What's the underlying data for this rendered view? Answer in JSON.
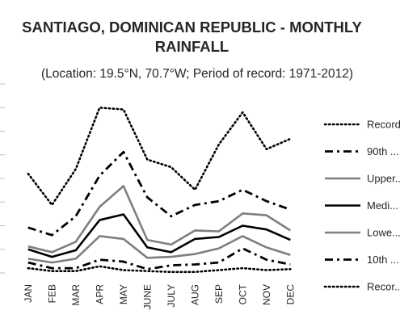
{
  "chart_data": {
    "type": "line",
    "title_line1": "SANTIAGO, DOMINICAN REPUBLIC - MONTHLY",
    "title_line2": "RAINFALL",
    "subtitle": "(Location: 19.5°N, 70.7°W; Period of record: 1971-2012)",
    "categories": [
      "JAN",
      "FEB",
      "MAR",
      "APR",
      "MAY",
      "JUNE",
      "JULY",
      "AUG",
      "SEP",
      "OCT",
      "NOV",
      "DEC"
    ],
    "ylim": [
      0,
      200
    ],
    "series": [
      {
        "name": "Record...",
        "style": "dotted",
        "color": "#000000",
        "values": [
          105,
          72,
          110,
          175,
          173,
          120,
          112,
          88,
          136,
          170,
          131,
          142
        ]
      },
      {
        "name": "90th ...",
        "style": "dashdot",
        "color": "#000000",
        "values": [
          48,
          40,
          60,
          103,
          128,
          80,
          60,
          72,
          76,
          88,
          76,
          67
        ]
      },
      {
        "name": "Upper...",
        "style": "solid",
        "color": "#7f7f7f",
        "values": [
          28,
          22,
          33,
          70,
          92,
          35,
          30,
          45,
          44,
          63,
          61,
          45
        ]
      },
      {
        "name": "Medi...",
        "style": "solid",
        "color": "#000000",
        "values": [
          25,
          17,
          24,
          56,
          62,
          27,
          22,
          36,
          38,
          50,
          46,
          35
        ]
      },
      {
        "name": "Lowe...",
        "style": "solid",
        "color": "#7f7f7f",
        "values": [
          15,
          11,
          15,
          39,
          36,
          16,
          17,
          20,
          26,
          39,
          27,
          19
        ]
      },
      {
        "name": "10th ...",
        "style": "dashdot",
        "color": "#000000",
        "values": [
          11,
          5,
          5,
          14,
          12,
          4,
          8,
          9,
          11,
          26,
          14,
          9
        ]
      },
      {
        "name": "Recor...",
        "style": "dotted",
        "color": "#000000",
        "values": [
          5,
          2,
          2,
          7,
          3,
          2,
          1,
          1,
          3,
          5,
          3,
          4
        ]
      }
    ],
    "grid": false,
    "legend_position": "right"
  }
}
